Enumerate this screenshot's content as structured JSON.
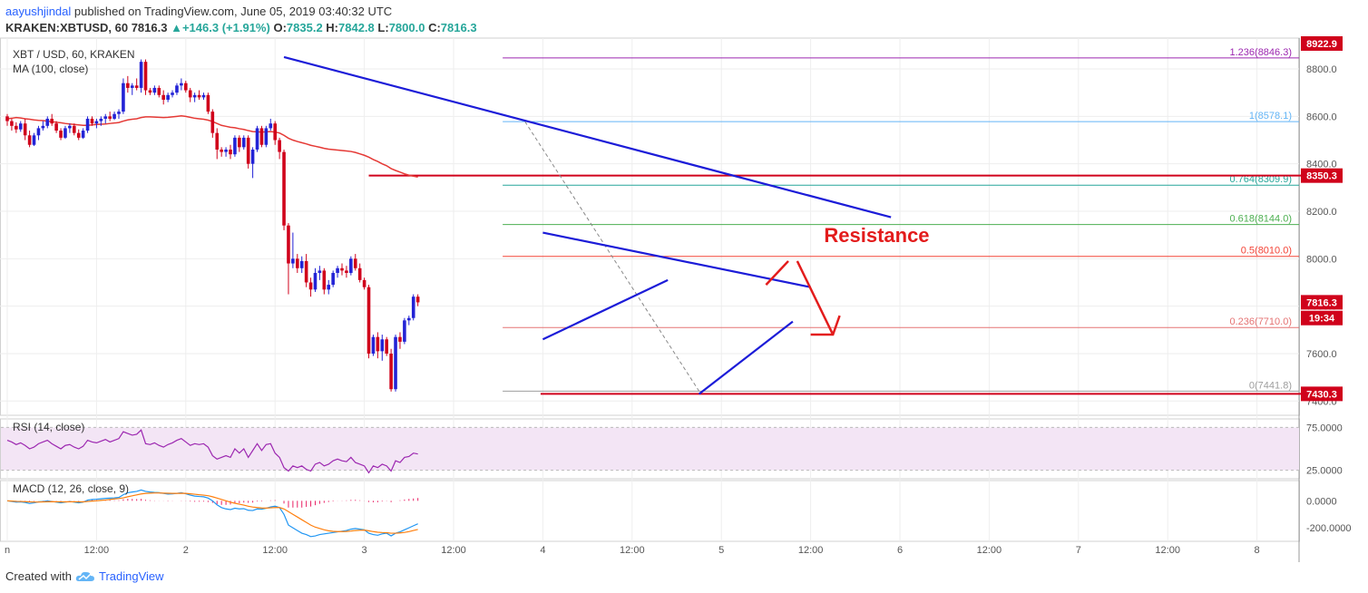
{
  "header": {
    "user": "aayushjindal",
    "published": "published on TradingView.com, June 05, 2019 03:40:32 UTC",
    "symbol": "KRAKEN:XBTUSD, 60",
    "last": "7816.3",
    "change": "+146.3 (+1.91%)",
    "o_label": "O:",
    "o": "7835.2",
    "h_label": "H:",
    "h": "7842.8",
    "l_label": "L:",
    "l": "7800.0",
    "c_label": "C:",
    "c": "7816.3"
  },
  "footer": {
    "created_with": "Created with",
    "brand": "TradingView"
  },
  "colors": {
    "up": "#2323d6",
    "down": "#d0021b",
    "ma": "#e53935",
    "trend": "#1c1cd8",
    "rsi": "#9c27b0",
    "macd": "#2196f3",
    "signal": "#ff7f0e",
    "hist": "#e91e63"
  },
  "chart_data": {
    "type": "candlestick",
    "legend": [
      "XBT / USD, 60, KRAKEN",
      "MA (100, close)"
    ],
    "y_ticks": [
      7400,
      7600,
      7800,
      8000,
      8200,
      8400,
      8600,
      8800
    ],
    "ylim": [
      7340,
      8930
    ],
    "x_ticks": [
      {
        "t": 0,
        "label": "n"
      },
      {
        "t": 20,
        "label": "12:00"
      },
      {
        "t": 40,
        "label": "2"
      },
      {
        "t": 60,
        "label": "12:00"
      },
      {
        "t": 80,
        "label": "3"
      },
      {
        "t": 100,
        "label": "12:00"
      },
      {
        "t": 120,
        "label": "4"
      },
      {
        "t": 140,
        "label": "12:00"
      },
      {
        "t": 160,
        "label": "5"
      },
      {
        "t": 180,
        "label": "12:00"
      },
      {
        "t": 200,
        "label": "6"
      },
      {
        "t": 220,
        "label": "12:00"
      },
      {
        "t": 240,
        "label": "7"
      },
      {
        "t": 260,
        "label": "12:00"
      },
      {
        "t": 280,
        "label": "8"
      }
    ],
    "price_labels": [
      {
        "price": 8922.9,
        "text": "8922.9",
        "bg": "#d0021b"
      },
      {
        "price": 8350.3,
        "text": "8350.3",
        "bg": "#d0021b"
      },
      {
        "price": 7816.3,
        "text": "7816.3",
        "bg": "#d0021b"
      },
      {
        "price": 7750,
        "text": "19:34",
        "bg": "#d0021b"
      },
      {
        "price": 7430.3,
        "text": "7430.3",
        "bg": "#d0021b"
      }
    ],
    "fib_levels": [
      {
        "price": 8846.3,
        "ratio": "1.236",
        "text": "(8846.3)",
        "color": "#9c27b0"
      },
      {
        "price": 8578.1,
        "ratio": "1",
        "text": "(8578.1)",
        "color": "#64b5f6"
      },
      {
        "price": 8309.9,
        "ratio": "0.764",
        "text": "(8309.9)",
        "color": "#26a69a"
      },
      {
        "price": 8144.0,
        "ratio": "0.618",
        "text": "(8144.0)",
        "color": "#4caf50"
      },
      {
        "price": 8010.0,
        "ratio": "0.5",
        "text": "(8010.0)",
        "color": "#f44336"
      },
      {
        "price": 7710.0,
        "ratio": "0.236",
        "text": "(7710.0)",
        "color": "#e57373"
      },
      {
        "price": 7441.8,
        "ratio": "0",
        "text": "(7441.8)",
        "color": "#9e9e9e"
      }
    ],
    "horizontals": [
      {
        "price": 8350.3,
        "t0": 81,
        "t1": 290,
        "color": "#d0021b"
      },
      {
        "price": 7430.3,
        "t0": 119.5,
        "t1": 290,
        "color": "#d0021b"
      }
    ],
    "trendlines": [
      {
        "t0": 62,
        "p0": 8850,
        "t1": 198,
        "p1": 8175
      },
      {
        "t0": 120,
        "p0": 8110,
        "t1": 180,
        "p1": 7880
      },
      {
        "t0": 120,
        "p0": 7660,
        "t1": 148,
        "p1": 7910
      },
      {
        "t0": 155,
        "p0": 7430,
        "t1": 176,
        "p1": 7735
      }
    ],
    "annotation": "Resistance",
    "candles": [
      [
        8600,
        8610,
        8560,
        8580
      ],
      [
        8580,
        8590,
        8540,
        8560
      ],
      [
        8560,
        8575,
        8530,
        8545
      ],
      [
        8545,
        8580,
        8535,
        8570
      ],
      [
        8570,
        8590,
        8500,
        8520
      ],
      [
        8520,
        8540,
        8470,
        8480
      ],
      [
        8480,
        8530,
        8475,
        8520
      ],
      [
        8520,
        8560,
        8500,
        8550
      ],
      [
        8550,
        8580,
        8540,
        8560
      ],
      [
        8560,
        8600,
        8550,
        8590
      ],
      [
        8590,
        8610,
        8560,
        8570
      ],
      [
        8570,
        8580,
        8530,
        8540
      ],
      [
        8540,
        8550,
        8500,
        8510
      ],
      [
        8510,
        8560,
        8505,
        8550
      ],
      [
        8550,
        8570,
        8530,
        8560
      ],
      [
        8560,
        8570,
        8520,
        8530
      ],
      [
        8530,
        8545,
        8500,
        8510
      ],
      [
        8510,
        8550,
        8505,
        8540
      ],
      [
        8540,
        8600,
        8530,
        8590
      ],
      [
        8590,
        8600,
        8560,
        8570
      ],
      [
        8570,
        8590,
        8550,
        8580
      ],
      [
        8580,
        8600,
        8560,
        8590
      ],
      [
        8590,
        8610,
        8570,
        8600
      ],
      [
        8600,
        8620,
        8580,
        8590
      ],
      [
        8590,
        8620,
        8585,
        8610
      ],
      [
        8610,
        8630,
        8590,
        8620
      ],
      [
        8620,
        8760,
        8610,
        8740
      ],
      [
        8740,
        8770,
        8700,
        8720
      ],
      [
        8720,
        8740,
        8690,
        8730
      ],
      [
        8730,
        8760,
        8710,
        8720
      ],
      [
        8720,
        8840,
        8700,
        8830
      ],
      [
        8830,
        8840,
        8690,
        8710
      ],
      [
        8710,
        8720,
        8690,
        8700
      ],
      [
        8700,
        8730,
        8690,
        8720
      ],
      [
        8720,
        8730,
        8680,
        8690
      ],
      [
        8690,
        8710,
        8650,
        8670
      ],
      [
        8670,
        8700,
        8660,
        8690
      ],
      [
        8690,
        8710,
        8680,
        8700
      ],
      [
        8700,
        8740,
        8690,
        8730
      ],
      [
        8730,
        8760,
        8710,
        8740
      ],
      [
        8740,
        8750,
        8700,
        8710
      ],
      [
        8710,
        8720,
        8660,
        8680
      ],
      [
        8680,
        8700,
        8660,
        8690
      ],
      [
        8690,
        8710,
        8670,
        8680
      ],
      [
        8680,
        8700,
        8670,
        8690
      ],
      [
        8690,
        8700,
        8610,
        8620
      ],
      [
        8620,
        8630,
        8510,
        8530
      ],
      [
        8530,
        8550,
        8420,
        8460
      ],
      [
        8460,
        8470,
        8430,
        8450
      ],
      [
        8450,
        8470,
        8430,
        8460
      ],
      [
        8460,
        8480,
        8420,
        8440
      ],
      [
        8440,
        8520,
        8430,
        8510
      ],
      [
        8510,
        8520,
        8450,
        8470
      ],
      [
        8470,
        8520,
        8460,
        8510
      ],
      [
        8510,
        8520,
        8380,
        8400
      ],
      [
        8400,
        8470,
        8340,
        8460
      ],
      [
        8460,
        8560,
        8450,
        8550
      ],
      [
        8550,
        8560,
        8470,
        8480
      ],
      [
        8480,
        8560,
        8470,
        8550
      ],
      [
        8550,
        8590,
        8540,
        8570
      ],
      [
        8570,
        8580,
        8480,
        8500
      ],
      [
        8500,
        8510,
        8420,
        8450
      ],
      [
        8450,
        8460,
        8120,
        8140
      ],
      [
        8140,
        8150,
        7850,
        7980
      ],
      [
        7980,
        8110,
        7960,
        8000
      ],
      [
        8000,
        8020,
        7940,
        7960
      ],
      [
        7960,
        8010,
        7940,
        7990
      ],
      [
        7990,
        8020,
        7880,
        7900
      ],
      [
        7900,
        7920,
        7840,
        7870
      ],
      [
        7870,
        7960,
        7860,
        7940
      ],
      [
        7940,
        7970,
        7910,
        7950
      ],
      [
        7950,
        7960,
        7850,
        7870
      ],
      [
        7870,
        7910,
        7850,
        7890
      ],
      [
        7890,
        7950,
        7880,
        7940
      ],
      [
        7940,
        7970,
        7920,
        7960
      ],
      [
        7960,
        7980,
        7930,
        7950
      ],
      [
        7950,
        7970,
        7920,
        7940
      ],
      [
        7940,
        8010,
        7930,
        8000
      ],
      [
        8000,
        8020,
        7950,
        7960
      ],
      [
        7960,
        7980,
        7900,
        7910
      ],
      [
        7910,
        7920,
        7870,
        7880
      ],
      [
        7880,
        7890,
        7580,
        7600
      ],
      [
        7600,
        7680,
        7590,
        7670
      ],
      [
        7670,
        7690,
        7580,
        7610
      ],
      [
        7610,
        7680,
        7570,
        7660
      ],
      [
        7660,
        7670,
        7590,
        7600
      ],
      [
        7600,
        7620,
        7440,
        7450
      ],
      [
        7450,
        7680,
        7440,
        7670
      ],
      [
        7670,
        7690,
        7620,
        7650
      ],
      [
        7650,
        7750,
        7640,
        7740
      ],
      [
        7740,
        7760,
        7720,
        7750
      ],
      [
        7750,
        7850,
        7740,
        7840
      ],
      [
        7840,
        7850,
        7800,
        7816
      ]
    ],
    "candle_start": 0,
    "ma": [
      8590,
      8592,
      8595,
      8593,
      8590,
      8588,
      8585,
      8583,
      8582,
      8580,
      8578,
      8575,
      8573,
      8570,
      8568,
      8566,
      8564,
      8562,
      8562,
      8564,
      8566,
      8567,
      8568,
      8570,
      8572,
      8574,
      8580,
      8585,
      8588,
      8590,
      8595,
      8598,
      8598,
      8597,
      8596,
      8595,
      8596,
      8598,
      8600,
      8602,
      8600,
      8596,
      8592,
      8590,
      8588,
      8584,
      8578,
      8570,
      8562,
      8558,
      8554,
      8552,
      8548,
      8545,
      8540,
      8536,
      8535,
      8534,
      8535,
      8536,
      8534,
      8530,
      8520,
      8508,
      8500,
      8494,
      8489,
      8484,
      8478,
      8474,
      8470,
      8465,
      8462,
      8460,
      8458,
      8456,
      8454,
      8452,
      8448,
      8442,
      8436,
      8428,
      8418,
      8410,
      8400,
      8392,
      8380,
      8372,
      8365,
      8358,
      8352,
      8348,
      8344
    ],
    "rsi": {
      "label": "RSI (14, close)",
      "levels": [
        "75.0000",
        "25.0000"
      ],
      "values": [
        60,
        58,
        55,
        57,
        54,
        50,
        52,
        56,
        58,
        60,
        56,
        53,
        50,
        54,
        55,
        52,
        50,
        53,
        60,
        58,
        57,
        59,
        61,
        58,
        60,
        62,
        70,
        68,
        66,
        67,
        72,
        56,
        55,
        57,
        54,
        52,
        55,
        57,
        60,
        62,
        58,
        54,
        56,
        55,
        56,
        52,
        42,
        38,
        40,
        42,
        40,
        50,
        45,
        50,
        40,
        48,
        56,
        48,
        55,
        56,
        45,
        40,
        28,
        24,
        30,
        28,
        30,
        26,
        24,
        32,
        34,
        30,
        32,
        36,
        38,
        36,
        35,
        40,
        34,
        32,
        30,
        22,
        30,
        28,
        32,
        30,
        24,
        36,
        34,
        40,
        41,
        45,
        44
      ],
      "ylim": [
        15,
        85
      ]
    },
    "macd": {
      "label": "MACD (12, 26, close, 9)",
      "ticks": [
        "0.0000",
        "-200.0000"
      ],
      "macd": [
        0,
        -5,
        -10,
        -8,
        -12,
        -20,
        -15,
        -8,
        -5,
        0,
        -5,
        -10,
        -15,
        -10,
        -5,
        -10,
        -15,
        -10,
        5,
        10,
        12,
        15,
        18,
        20,
        22,
        25,
        45,
        60,
        65,
        70,
        80,
        70,
        65,
        62,
        60,
        55,
        50,
        52,
        55,
        60,
        52,
        42,
        35,
        32,
        30,
        20,
        0,
        -30,
        -50,
        -60,
        -65,
        -55,
        -60,
        -58,
        -70,
        -72,
        -60,
        -62,
        -55,
        -45,
        -40,
        -50,
        -100,
        -180,
        -200,
        -220,
        -240,
        -250,
        -265,
        -260,
        -250,
        -245,
        -240,
        -235,
        -230,
        -225,
        -220,
        -210,
        -205,
        -210,
        -215,
        -240,
        -250,
        -255,
        -245,
        -240,
        -260,
        -240,
        -230,
        -215,
        -200,
        -185,
        -170
      ],
      "signal": [
        0,
        -2,
        -4,
        -5,
        -6,
        -8,
        -9,
        -9,
        -8,
        -7,
        -6,
        -7,
        -8,
        -8,
        -7,
        -7,
        -8,
        -8,
        -5,
        -2,
        0,
        3,
        6,
        10,
        14,
        17,
        22,
        30,
        37,
        44,
        51,
        55,
        57,
        58,
        58,
        57,
        56,
        55,
        55,
        56,
        55,
        52,
        49,
        45,
        42,
        38,
        30,
        20,
        10,
        0,
        -10,
        -18,
        -25,
        -32,
        -40,
        -46,
        -50,
        -53,
        -54,
        -52,
        -50,
        -50,
        -60,
        -80,
        -100,
        -120,
        -140,
        -160,
        -180,
        -195,
        -205,
        -215,
        -222,
        -226,
        -228,
        -228,
        -227,
        -224,
        -220,
        -218,
        -217,
        -222,
        -228,
        -233,
        -235,
        -236,
        -240,
        -240,
        -238,
        -234,
        -228,
        -220,
        -212
      ],
      "ylim": [
        -300,
        150
      ]
    }
  }
}
